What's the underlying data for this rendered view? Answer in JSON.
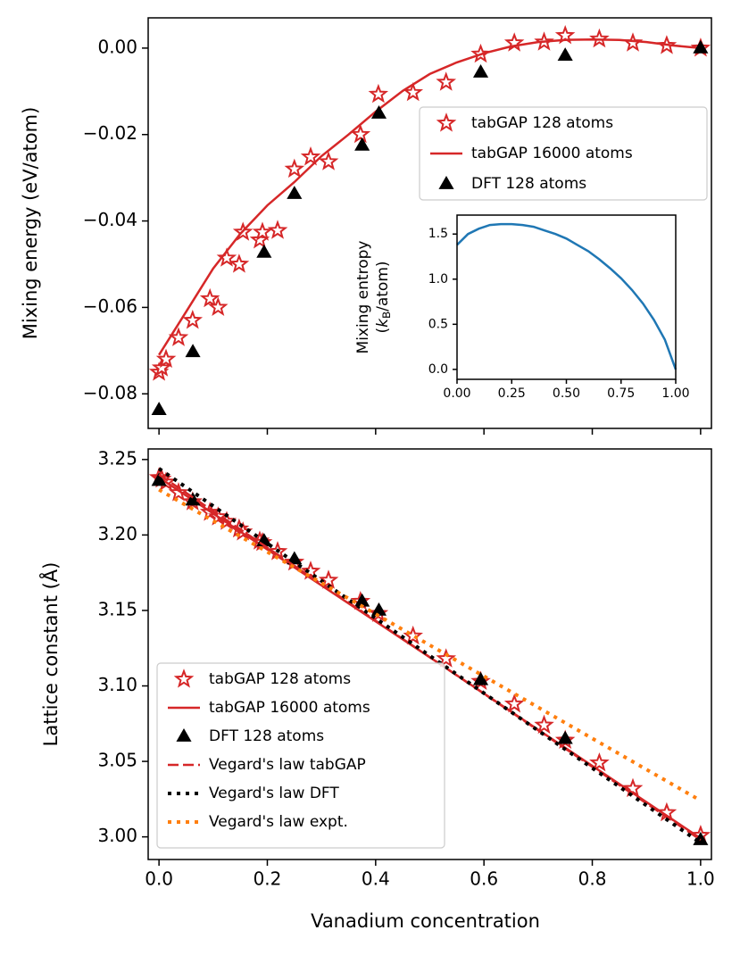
{
  "chart_data": [
    {
      "type": "line",
      "ylabel": "Mixing energy (eV/atom)",
      "xlim": [
        -0.02,
        1.02
      ],
      "ylim": [
        -0.088,
        0.007
      ],
      "xticks": [
        0,
        0.2,
        0.4,
        0.6,
        0.8,
        1.0
      ],
      "xtick_labels": false,
      "yticks": [
        {
          "value": -0.08,
          "label": "−0.08"
        },
        {
          "value": -0.06,
          "label": "−0.06"
        },
        {
          "value": -0.04,
          "label": "−0.04"
        },
        {
          "value": -0.02,
          "label": "−0.02"
        },
        {
          "value": 0,
          "label": "0.00"
        }
      ],
      "legend": "upper right",
      "series": [
        {
          "name": "tabGAP 128 atoms",
          "color": "#d62728",
          "marker": "star",
          "linestyle": "none",
          "x": [
            0,
            0.005,
            0.013,
            0.036,
            0.062,
            0.094,
            0.109,
            0.125,
            0.148,
            0.155,
            0.186,
            0.191,
            0.219,
            0.25,
            0.28,
            0.313,
            0.372,
            0.405,
            0.469,
            0.53,
            0.594,
            0.656,
            0.711,
            0.75,
            0.813,
            0.875,
            0.9375,
            1.0
          ],
          "values": [
            -0.075,
            -0.074,
            -0.072,
            -0.067,
            -0.063,
            -0.058,
            -0.06,
            -0.0486,
            -0.05,
            -0.0426,
            -0.0444,
            -0.0426,
            -0.0422,
            -0.028,
            -0.0252,
            -0.0263,
            -0.02,
            -0.0107,
            -0.0103,
            -0.0079,
            -0.0014,
            0.0012,
            0.0014,
            0.0029,
            0.0021,
            0.0012,
            0.0006,
            0
          ]
        },
        {
          "name": "tabGAP 16000 atoms",
          "color": "#d62728",
          "marker": "none",
          "linestyle": "solid",
          "x": [
            0,
            0.05,
            0.1,
            0.15,
            0.2,
            0.25,
            0.3,
            0.35,
            0.4,
            0.45,
            0.5,
            0.55,
            0.6,
            0.65,
            0.7,
            0.75,
            0.8,
            0.85,
            0.9,
            0.95,
            1.0
          ],
          "values": [
            -0.071,
            -0.061,
            -0.051,
            -0.043,
            -0.0364,
            -0.031,
            -0.025,
            -0.02,
            -0.0147,
            -0.0099,
            -0.006,
            -0.0033,
            -0.0012,
            0.0004,
            0.0014,
            0.0019,
            0.002,
            0.0019,
            0.0014,
            0.0006,
            0
          ]
        },
        {
          "name": "DFT 128 atoms",
          "color": "#000000",
          "marker": "triangle",
          "linestyle": "none",
          "x": [
            0,
            0.0625,
            0.194,
            0.25,
            0.375,
            0.406,
            0.594,
            0.75,
            1.0
          ],
          "values": [
            -0.0837,
            -0.0703,
            -0.0473,
            -0.0337,
            -0.0225,
            -0.0151,
            -0.0056,
            -0.0017,
            0
          ]
        }
      ]
    },
    {
      "type": "line",
      "ylabel": [
        "Mixing entropy",
        [
          "(",
          "k",
          "B",
          "/atom)"
        ]
      ],
      "xlim": [
        0,
        1
      ],
      "ylim": [
        -0.11,
        1.71
      ],
      "xticks": [
        {
          "value": 0,
          "label": "0.00"
        },
        {
          "value": 0.25,
          "label": "0.25"
        },
        {
          "value": 0.5,
          "label": "0.50"
        },
        {
          "value": 0.75,
          "label": "0.75"
        },
        {
          "value": 1,
          "label": "1.00"
        }
      ],
      "yticks": [
        {
          "value": 0,
          "label": "0.0"
        },
        {
          "value": 0.5,
          "label": "0.5"
        },
        {
          "value": 1,
          "label": "1.0"
        },
        {
          "value": 1.5,
          "label": "1.5"
        }
      ],
      "series": [
        {
          "color": "#1f77b4",
          "marker": "none",
          "linestyle": "solid",
          "x": [
            0,
            0.05,
            0.1,
            0.15,
            0.2,
            0.25,
            0.3,
            0.35,
            0.4,
            0.45,
            0.5,
            0.55,
            0.6,
            0.65,
            0.7,
            0.75,
            0.8,
            0.85,
            0.9,
            0.95,
            1.0
          ],
          "values": [
            1.38,
            1.5,
            1.56,
            1.6,
            1.61,
            1.61,
            1.6,
            1.58,
            1.54,
            1.5,
            1.45,
            1.38,
            1.31,
            1.22,
            1.12,
            1.01,
            0.88,
            0.73,
            0.55,
            0.33,
            0
          ]
        }
      ]
    },
    {
      "type": "line",
      "xlabel": "Vanadium concentration",
      "ylabel": "Lattice constant (Å)",
      "xlim": [
        -0.02,
        1.02
      ],
      "ylim": [
        2.985,
        3.257
      ],
      "xticks": [
        {
          "value": 0,
          "label": "0.0"
        },
        {
          "value": 0.2,
          "label": "0.2"
        },
        {
          "value": 0.4,
          "label": "0.4"
        },
        {
          "value": 0.6,
          "label": "0.6"
        },
        {
          "value": 0.8,
          "label": "0.8"
        },
        {
          "value": 1,
          "label": "1.0"
        }
      ],
      "yticks": [
        {
          "value": 3,
          "label": "3.00"
        },
        3.05,
        {
          "value": 3.1,
          "label": "3.10"
        },
        3.15,
        {
          "value": 3.2,
          "label": "3.20"
        },
        3.25
      ],
      "legend": "lower left",
      "series": [
        {
          "name": "tabGAP 128 atoms",
          "color": "#d62728",
          "marker": "star",
          "linestyle": "none",
          "x": [
            0,
            0.005,
            0.013,
            0.036,
            0.062,
            0.094,
            0.109,
            0.125,
            0.148,
            0.155,
            0.186,
            0.191,
            0.219,
            0.25,
            0.28,
            0.313,
            0.372,
            0.405,
            0.469,
            0.53,
            0.594,
            0.656,
            0.711,
            0.75,
            0.813,
            0.875,
            0.9375,
            1.0
          ],
          "values": [
            3.238,
            3.237,
            3.235,
            3.228,
            3.222,
            3.215,
            3.212,
            3.209,
            3.204,
            3.202,
            3.196,
            3.195,
            3.189,
            3.182,
            3.176,
            3.17,
            3.156,
            3.148,
            3.133,
            3.118,
            3.103,
            3.088,
            3.074,
            3.064,
            3.049,
            3.032,
            3.016,
            3.001
          ]
        },
        {
          "name": "tabGAP 16000 atoms",
          "color": "#d62728",
          "marker": "none",
          "linestyle": "solid",
          "x": [
            0,
            0.5,
            1.0
          ],
          "values": [
            3.238,
            3.119,
            2.999
          ]
        },
        {
          "name": "DFT 128 atoms",
          "color": "#000000",
          "marker": "triangle",
          "linestyle": "none",
          "x": [
            0,
            0.0625,
            0.194,
            0.25,
            0.375,
            0.406,
            0.594,
            0.75,
            1.0
          ],
          "values": [
            3.236,
            3.223,
            3.196,
            3.184,
            3.156,
            3.15,
            3.104,
            3.065,
            2.998
          ]
        },
        {
          "name": "Vegard's law tabGAP",
          "color": "#d62728",
          "marker": "none",
          "linestyle": "dashed",
          "x": [
            0,
            1.0
          ],
          "values": [
            3.24,
            2.998
          ]
        },
        {
          "name": "Vegard's law DFT",
          "color": "#000000",
          "marker": "none",
          "linestyle": "dotted",
          "x": [
            0,
            1.0
          ],
          "values": [
            3.244,
            2.996
          ]
        },
        {
          "name": "Vegard's law expt.",
          "color": "#ff7f0e",
          "marker": "none",
          "linestyle": "dotted",
          "x": [
            0,
            1.0
          ],
          "values": [
            3.23,
            3.024
          ]
        }
      ]
    }
  ]
}
